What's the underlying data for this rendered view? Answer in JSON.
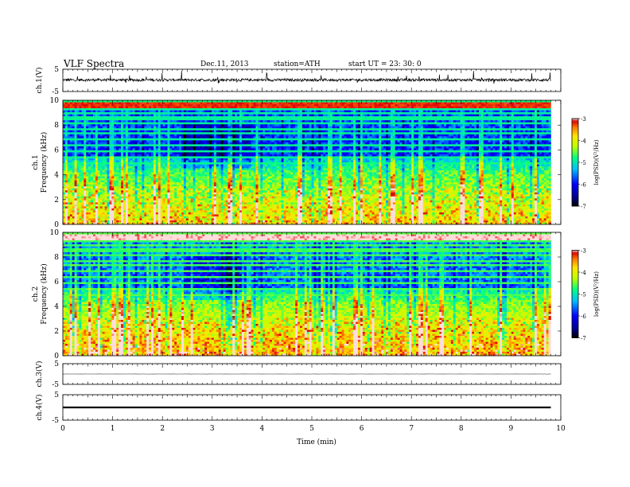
{
  "header": {
    "title": "VLF  Spectra",
    "date": "Dec.11, 2013",
    "station": "station=ATH",
    "start": "start  UT  =    23: 30: 0"
  },
  "colors": {
    "spectrogram_scale": [
      "#000000",
      "#0000ff",
      "#00bfff",
      "#00ff7f",
      "#ffff00",
      "#ff8c00",
      "#ff0000",
      "#ffffff"
    ],
    "waveform": "#000000"
  },
  "chart_data": [
    {
      "type": "line",
      "name": "ch1-waveform",
      "ylabel": "ch.1(V)",
      "ylim": [
        -5,
        5
      ],
      "yticks": [
        "5",
        "-5"
      ],
      "trace": {
        "baseline": 0.2,
        "noise": 0.6,
        "spikes": true
      }
    },
    {
      "type": "heatmap",
      "name": "ch1-spectrogram",
      "ylabel_channel": "ch.1",
      "ylabel": "Frequency  (kHz)",
      "ylim": [
        0,
        10
      ],
      "yticks": [
        "0",
        "2",
        "4",
        "6",
        "8",
        "10"
      ],
      "colorbar": {
        "label": "log(PSD)(V²/Hz)",
        "range": [
          -7,
          -3
        ],
        "ticks": [
          "-3",
          "-4",
          "-5",
          "-6",
          "-7"
        ]
      }
    },
    {
      "type": "heatmap",
      "name": "ch2-spectrogram",
      "ylabel_channel": "ch.2",
      "ylabel": "Frequency  (kHz)",
      "ylim": [
        0,
        10
      ],
      "yticks": [
        "0",
        "2",
        "4",
        "6",
        "8",
        "10"
      ],
      "colorbar": {
        "label": "log(PSD)(V²/Hz)",
        "range": [
          -7,
          -3
        ],
        "ticks": [
          "-3",
          "-4",
          "-5",
          "-6",
          "-7"
        ]
      }
    },
    {
      "type": "line",
      "name": "ch3-waveform",
      "ylabel": "ch.3(V)",
      "ylim": [
        -5,
        5
      ],
      "yticks": [
        "5",
        "-5"
      ],
      "trace": {
        "baseline": 0.0,
        "noise": 0.05,
        "spikes": false
      }
    },
    {
      "type": "line",
      "name": "ch4-waveform",
      "ylabel": "ch.4(V)",
      "ylim": [
        -5,
        5
      ],
      "yticks": [
        "5",
        "-5"
      ],
      "trace": {
        "baseline": 0.0,
        "noise": 0.35,
        "spikes": false
      }
    }
  ],
  "x_axis": {
    "label": "Time  (min)",
    "range": [
      0,
      10
    ],
    "data_end": 9.8,
    "ticks": [
      "0",
      "1",
      "2",
      "3",
      "4",
      "5",
      "6",
      "7",
      "8",
      "9",
      "10"
    ]
  }
}
